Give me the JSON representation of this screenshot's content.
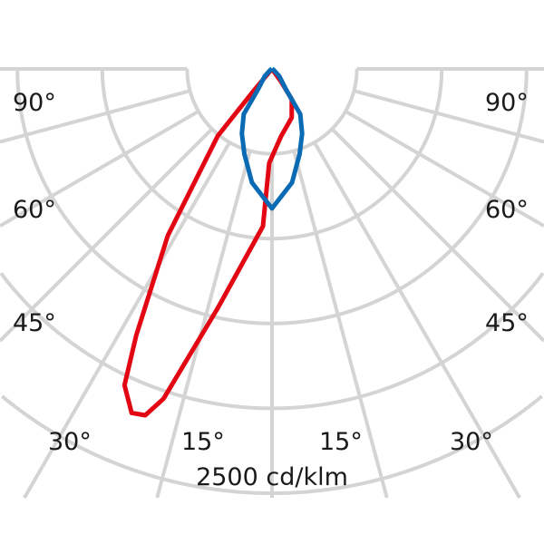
{
  "chart_data": {
    "type": "polar-line",
    "unit_label": "2500 cd/klm",
    "rmax": 2500,
    "ring_step": 500,
    "angle_step_deg": 15,
    "angle_labels_left": [
      "90°",
      "60°",
      "45°",
      "30°",
      "15°"
    ],
    "angle_labels_right": [
      "15°",
      "30°",
      "45°",
      "60°",
      "90°"
    ],
    "grid": true,
    "colors": {
      "grid": "#d4d4d4",
      "red": "#e30613",
      "blue": "#0a6ab4"
    },
    "series": [
      {
        "color": "#e30613",
        "points": [
          {
            "angle": 0,
            "value": 0
          },
          {
            "angle": 35.5,
            "value": 91
          },
          {
            "angle": 33,
            "value": 214
          },
          {
            "angle": 22,
            "value": 310
          },
          {
            "angle": 7.7,
            "value": 400
          },
          {
            "angle": -1.7,
            "value": 555
          },
          {
            "angle": -3.3,
            "value": 929
          },
          {
            "angle": -12.8,
            "value": 1447
          },
          {
            "angle": -18.2,
            "value": 2045
          },
          {
            "angle": -20.1,
            "value": 2173
          },
          {
            "angle": -22.2,
            "value": 2189
          },
          {
            "angle": -25,
            "value": 2056
          },
          {
            "angle": -27,
            "value": 1762
          },
          {
            "angle": -32,
            "value": 1159
          },
          {
            "angle": -39,
            "value": 507
          },
          {
            "angle": -40,
            "value": 166
          },
          {
            "angle": 0,
            "value": 0
          }
        ]
      },
      {
        "color": "#0a6ab4",
        "points": [
          {
            "angle": 0,
            "value": 822
          },
          {
            "angle": 10,
            "value": 680
          },
          {
            "angle": 18,
            "value": 527
          },
          {
            "angle": 25,
            "value": 420
          },
          {
            "angle": 32,
            "value": 314
          },
          {
            "angle": 34,
            "value": 155
          },
          {
            "angle": 45,
            "value": 60
          },
          {
            "angle": 60,
            "value": 10
          },
          {
            "angle": 90,
            "value": 0
          }
        ],
        "symmetric": true
      }
    ]
  }
}
